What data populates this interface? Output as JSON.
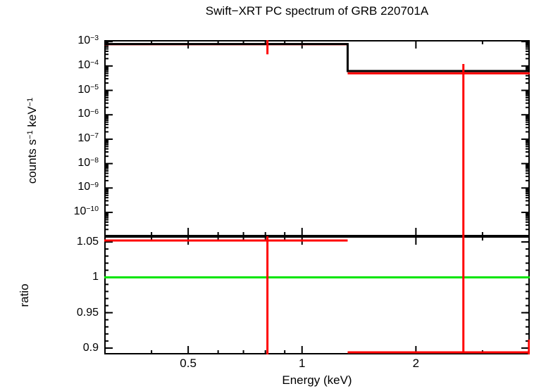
{
  "title": "Swift−XRT PC spectrum of GRB 220701A",
  "colors": {
    "axis": "#000000",
    "model": "#000000",
    "data": "#ff0000",
    "reference": "#00e400",
    "background": "#ffffff"
  },
  "chart_data": {
    "type": "line",
    "title": "Swift−XRT PC spectrum of GRB 220701A",
    "xlabel": "Energy (keV)",
    "x_scale": "log",
    "xlim": [
      0.3,
      4.0
    ],
    "x_major_ticks": [
      0.5,
      1,
      2
    ],
    "x_major_tick_labels": [
      "0.5",
      "1",
      "2"
    ],
    "x_minor_ticks": [
      0.4,
      0.6,
      0.7,
      0.8,
      0.9,
      3
    ],
    "legend": "none",
    "grid": "off",
    "panels": [
      {
        "name": "spectrum",
        "ylabel": "counts s−1 keV−1",
        "ylabel_rich": [
          {
            "t": "counts s"
          },
          {
            "t": "−1",
            "sup": true
          },
          {
            "t": " keV"
          },
          {
            "t": "−1",
            "sup": true
          }
        ],
        "y_scale": "log",
        "ylim": [
          1.05e-11,
          0.00115
        ],
        "y_major_tick_exponents": [
          -3,
          -4,
          -5,
          -6,
          -7,
          -8,
          -9,
          -10
        ],
        "model_bins": [
          {
            "e_min": 0.3,
            "e_max": 1.32,
            "value": 0.00079
          },
          {
            "e_min": 1.32,
            "e_max": 4.0,
            "value": 6.2e-05
          }
        ],
        "data_bins": [
          {
            "e_min": 0.3,
            "e_max": 1.32,
            "value": 0.00078
          },
          {
            "e_min": 1.32,
            "e_max": 4.0,
            "value": 5e-05
          }
        ],
        "error_bars": [
          {
            "energy": 0.81,
            "lo": 0.0003,
            "hi": 0.0013
          },
          {
            "energy": 2.67,
            "lo": 1e-12,
            "hi": 0.00012
          }
        ]
      },
      {
        "name": "ratio",
        "ylabel": "ratio",
        "y_scale": "linear",
        "ylim": [
          0.891,
          1.058
        ],
        "y_major_ticks": [
          0.9,
          0.95,
          1,
          1.05
        ],
        "y_major_tick_labels": [
          "0.9",
          "0.95",
          "1",
          "1.05"
        ],
        "y_minor_step": 0.01,
        "reference_line": 1.0,
        "data_bins": [
          {
            "e_min": 0.3,
            "e_max": 1.32,
            "value": 1.052
          },
          {
            "e_min": 1.32,
            "e_max": 4.0,
            "value": 0.894
          }
        ],
        "error_bars": [
          {
            "energy": 0.81,
            "lo": 0.8,
            "hi": 1.15
          },
          {
            "energy": 2.67,
            "lo": 0.894,
            "hi": 1.15
          },
          {
            "energy": 3.98,
            "lo": 0.8,
            "hi": 0.912
          }
        ]
      }
    ]
  }
}
